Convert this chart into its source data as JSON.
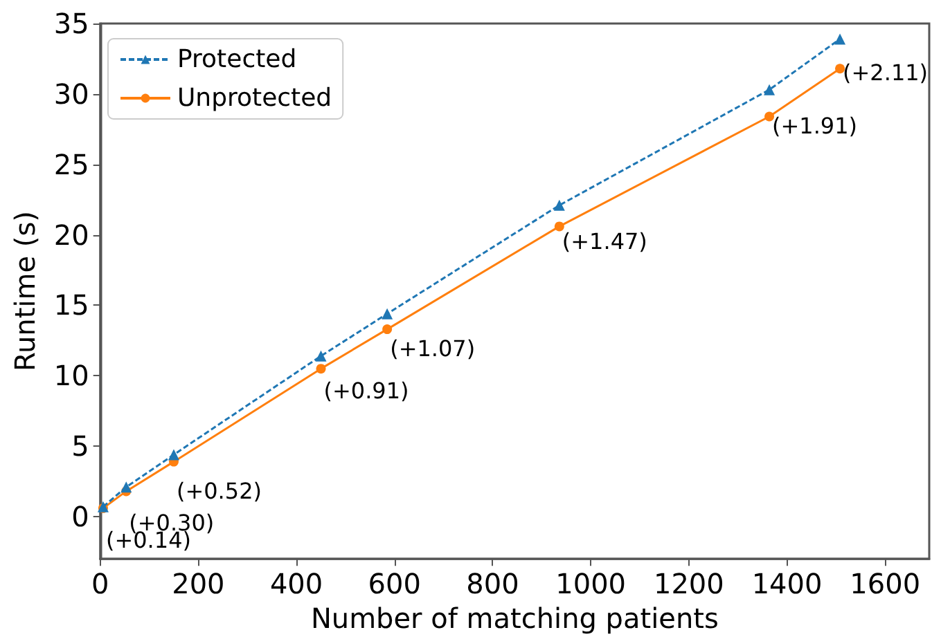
{
  "chart_data": {
    "type": "line",
    "xlabel": "Number of matching patients",
    "ylabel": "Runtime (s)",
    "x": [
      6,
      53,
      150,
      450,
      585,
      936,
      1364,
      1508
    ],
    "series": [
      {
        "name": "Protected",
        "color": "#1f77b4",
        "values": [
          0.7,
          2.1,
          4.4,
          11.4,
          14.4,
          22.1,
          30.3,
          33.9
        ],
        "marker": "triangle",
        "line_style": "dashed"
      },
      {
        "name": "Unprotected",
        "color": "#ff7f0e",
        "values": [
          0.6,
          1.8,
          3.9,
          10.5,
          13.3,
          20.6,
          28.4,
          31.8
        ],
        "marker": "circle",
        "line_style": "solid"
      }
    ],
    "xlim": [
      0,
      1690
    ],
    "xticks": [
      0,
      200,
      400,
      600,
      800,
      1000,
      1200,
      1400,
      1600
    ],
    "ylim": [
      -3,
      35
    ],
    "yticks": [
      0,
      5,
      10,
      15,
      20,
      25,
      30,
      35
    ],
    "annotations": [
      {
        "text": "(+0.14)",
        "x": 6,
        "y": 0.6
      },
      {
        "text": "(+0.30)",
        "x": 53,
        "y": 1.8
      },
      {
        "text": "(+0.52)",
        "x": 150,
        "y": 3.9
      },
      {
        "text": "(+0.91)",
        "x": 450,
        "y": 10.5
      },
      {
        "text": "(+1.07)",
        "x": 585,
        "y": 13.3
      },
      {
        "text": "(+1.47)",
        "x": 936,
        "y": 20.6
      },
      {
        "text": "(+1.91)",
        "x": 1364,
        "y": 28.4
      },
      {
        "text": "(+2.11)",
        "x": 1508,
        "y": 31.8
      }
    ],
    "legend": "top left",
    "grid": false
  }
}
